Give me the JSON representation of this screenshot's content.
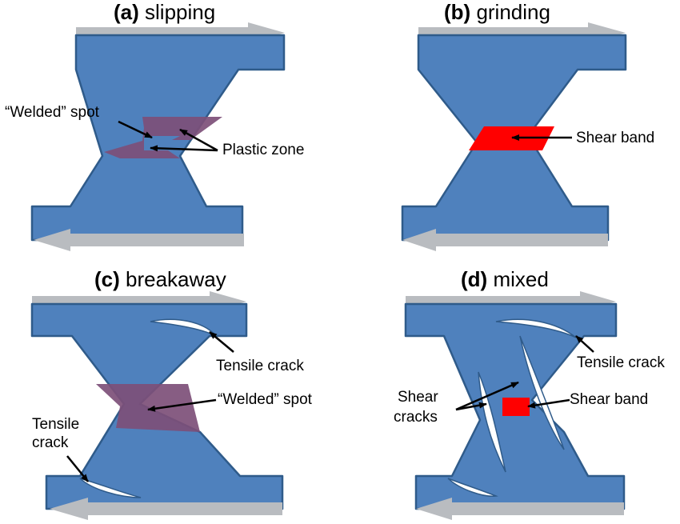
{
  "panels": {
    "a": {
      "letter": "(a)",
      "name": "slipping",
      "labels": {
        "welded": "“Welded” spot",
        "plastic": "Plastic zone"
      }
    },
    "b": {
      "letter": "(b)",
      "name": "grinding",
      "labels": {
        "shear_band": "Shear band"
      }
    },
    "c": {
      "letter": "(c)",
      "name": "breakaway",
      "labels": {
        "tensile_top": "Tensile crack",
        "welded": "“Welded” spot",
        "tensile_left_1": "Tensile",
        "tensile_left_2": "crack"
      }
    },
    "d": {
      "letter": "(d)",
      "name": "mixed",
      "labels": {
        "tensile": "Tensile crack",
        "shear_cracks_1": "Shear",
        "shear_cracks_2": "cracks",
        "shear_band": "Shear band"
      }
    }
  },
  "colors": {
    "body": "#4f81bd",
    "outline": "#2f5b8a",
    "motion_arrow": "#b9bcc0",
    "plastic_zone": "#7d4f78",
    "shear_band": "#ff0000"
  }
}
